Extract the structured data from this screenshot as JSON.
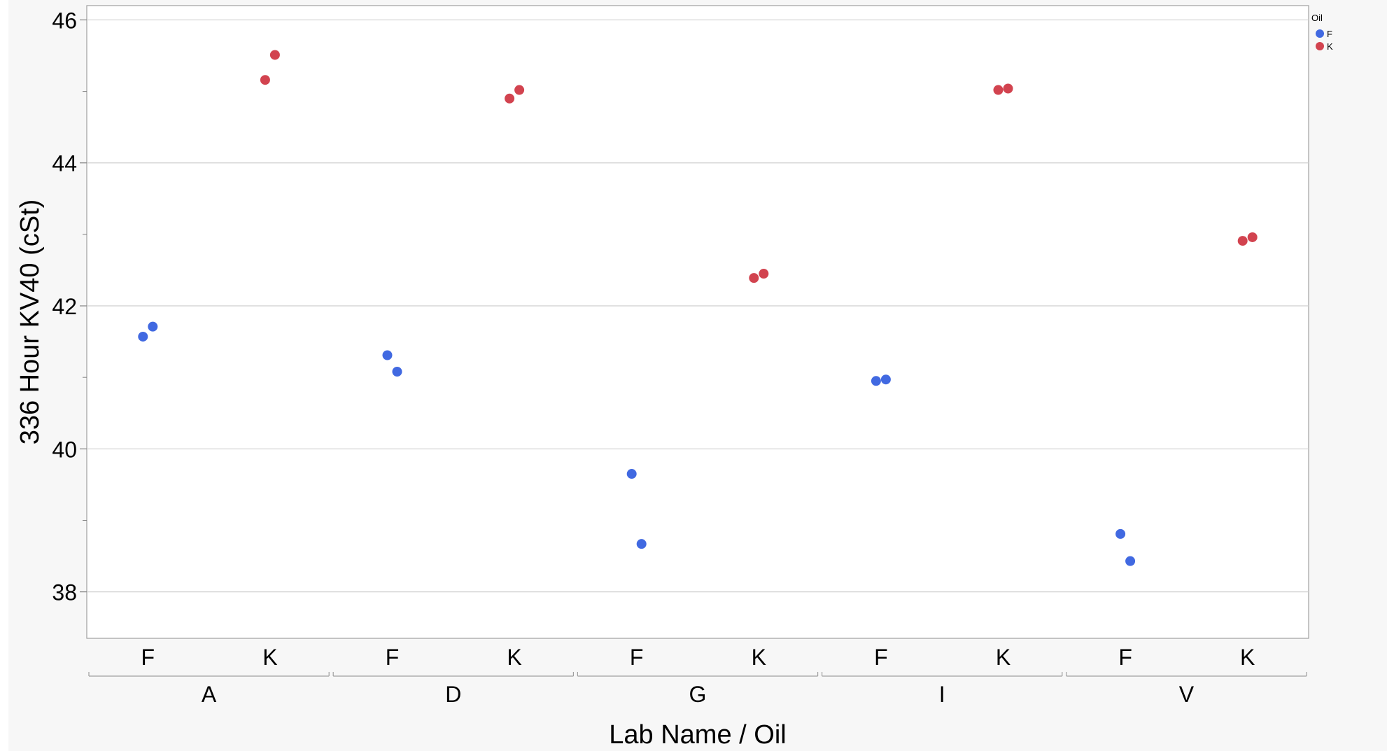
{
  "chart_data": {
    "type": "scatter",
    "title": "",
    "ylabel": "336 Hour KV40 (cSt)",
    "xlabel": "Lab Name / Oil",
    "ylim": [
      37.35,
      46.2
    ],
    "yticks": [
      38,
      40,
      42,
      44,
      46
    ],
    "grid": true,
    "groups": [
      "A",
      "D",
      "G",
      "I",
      "V"
    ],
    "subcategories": [
      "F",
      "K"
    ],
    "legend": {
      "title": "Oil",
      "placement": "top-right",
      "entries": [
        "F",
        "K"
      ]
    },
    "colors": {
      "F": "#4169e1",
      "K": "#d2434f"
    },
    "points": [
      {
        "group": "A",
        "oil": "F",
        "y": 41.57
      },
      {
        "group": "A",
        "oil": "F",
        "y": 41.71
      },
      {
        "group": "A",
        "oil": "K",
        "y": 45.16
      },
      {
        "group": "A",
        "oil": "K",
        "y": 45.51
      },
      {
        "group": "D",
        "oil": "F",
        "y": 41.31
      },
      {
        "group": "D",
        "oil": "F",
        "y": 41.08
      },
      {
        "group": "D",
        "oil": "K",
        "y": 44.9
      },
      {
        "group": "D",
        "oil": "K",
        "y": 45.02
      },
      {
        "group": "G",
        "oil": "F",
        "y": 39.65
      },
      {
        "group": "G",
        "oil": "F",
        "y": 38.67
      },
      {
        "group": "G",
        "oil": "K",
        "y": 42.39
      },
      {
        "group": "G",
        "oil": "K",
        "y": 42.45
      },
      {
        "group": "I",
        "oil": "F",
        "y": 40.95
      },
      {
        "group": "I",
        "oil": "F",
        "y": 40.97
      },
      {
        "group": "I",
        "oil": "K",
        "y": 45.02
      },
      {
        "group": "I",
        "oil": "K",
        "y": 45.04
      },
      {
        "group": "V",
        "oil": "F",
        "y": 38.81
      },
      {
        "group": "V",
        "oil": "F",
        "y": 38.43
      },
      {
        "group": "V",
        "oil": "K",
        "y": 42.91
      },
      {
        "group": "V",
        "oil": "K",
        "y": 42.96
      }
    ]
  }
}
